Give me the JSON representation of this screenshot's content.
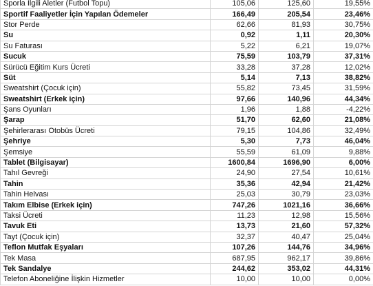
{
  "table": {
    "rows": [
      [
        "Sporla İlgili Aletler (Futbol Topu)",
        "105,06",
        "125,60",
        "19,55%"
      ],
      [
        "Sportif Faaliyetler İçin Yapılan Ödemeler",
        "166,49",
        "205,54",
        "23,46%"
      ],
      [
        "Stor Perde",
        "62,66",
        "81,93",
        "30,75%"
      ],
      [
        "Su",
        "0,92",
        "1,11",
        "20,30%"
      ],
      [
        "Su Faturası",
        "5,22",
        "6,21",
        "19,07%"
      ],
      [
        "Sucuk",
        "75,59",
        "103,79",
        "37,31%"
      ],
      [
        "Sürücü Eğitim Kurs Ücreti",
        "33,28",
        "37,28",
        "12,02%"
      ],
      [
        "Süt",
        "5,14",
        "7,13",
        "38,82%"
      ],
      [
        "Sweatshirt (Çocuk için)",
        "55,82",
        "73,45",
        "31,59%"
      ],
      [
        "Sweatshirt (Erkek için)",
        "97,66",
        "140,96",
        "44,34%"
      ],
      [
        "Şans Oyunları",
        "1,96",
        "1,88",
        "-4,22%"
      ],
      [
        "Şarap",
        "51,70",
        "62,60",
        "21,08%"
      ],
      [
        "Şehirlerarası Otobüs Ücreti",
        "79,15",
        "104,86",
        "32,49%"
      ],
      [
        "Şehriye",
        "5,30",
        "7,73",
        "46,04%"
      ],
      [
        "Şemsiye",
        "55,59",
        "61,09",
        "9,88%"
      ],
      [
        "Tablet (Bilgisayar)",
        "1600,84",
        "1696,90",
        "6,00%"
      ],
      [
        "Tahıl Gevreği",
        "24,90",
        "27,54",
        "10,61%"
      ],
      [
        "Tahin",
        "35,36",
        "42,94",
        "21,42%"
      ],
      [
        "Tahin Helvası",
        "25,03",
        "30,79",
        "23,03%"
      ],
      [
        "Takım Elbise (Erkek için)",
        "747,26",
        "1021,16",
        "36,66%"
      ],
      [
        "Taksi Ücreti",
        "11,23",
        "12,98",
        "15,56%"
      ],
      [
        "Tavuk Eti",
        "13,73",
        "21,60",
        "57,32%"
      ],
      [
        "Tayt (Çocuk için)",
        "32,37",
        "40,47",
        "25,04%"
      ],
      [
        "Teflon Mutfak Eşyaları",
        "107,26",
        "144,76",
        "34,96%"
      ],
      [
        "Tek Masa",
        "687,95",
        "962,17",
        "39,86%"
      ],
      [
        "Tek Sandalye",
        "244,62",
        "353,02",
        "44,31%"
      ],
      [
        "Telefon Aboneliğine İlişkin Hizmetler",
        "10,00",
        "10,00",
        "0,00%"
      ]
    ]
  }
}
